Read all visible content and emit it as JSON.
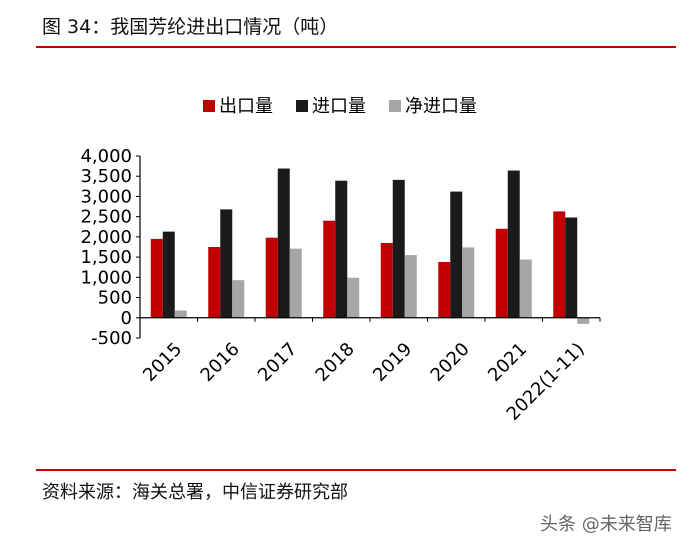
{
  "header": {
    "title": "图 34：我国芳纶进出口情况（吨）"
  },
  "footer": {
    "source": "资料来源：海关总署，中信证券研究部"
  },
  "watermark": {
    "text": "头条 @未来智库"
  },
  "chart_data": {
    "type": "bar",
    "categories": [
      "2015",
      "2016",
      "2017",
      "2018",
      "2019",
      "2020",
      "2021",
      "2022(1-11)"
    ],
    "series": [
      {
        "name": "出口量",
        "color": "#c00000",
        "values": [
          1950,
          1750,
          1980,
          2400,
          1850,
          1380,
          2200,
          2630
        ]
      },
      {
        "name": "进口量",
        "color": "#1a1a1a",
        "values": [
          2130,
          2680,
          3690,
          3390,
          3410,
          3120,
          3640,
          2480
        ]
      },
      {
        "name": "净进口量",
        "color": "#a6a6a6",
        "values": [
          180,
          930,
          1710,
          990,
          1550,
          1740,
          1440,
          -150
        ]
      }
    ],
    "yticks": [
      "4,000",
      "3,500",
      "3,000",
      "2,500",
      "2,000",
      "1,500",
      "1,000",
      "500",
      "0",
      "-500"
    ],
    "ylim": [
      -500,
      4000
    ],
    "legend_position": "top",
    "grid": false
  }
}
